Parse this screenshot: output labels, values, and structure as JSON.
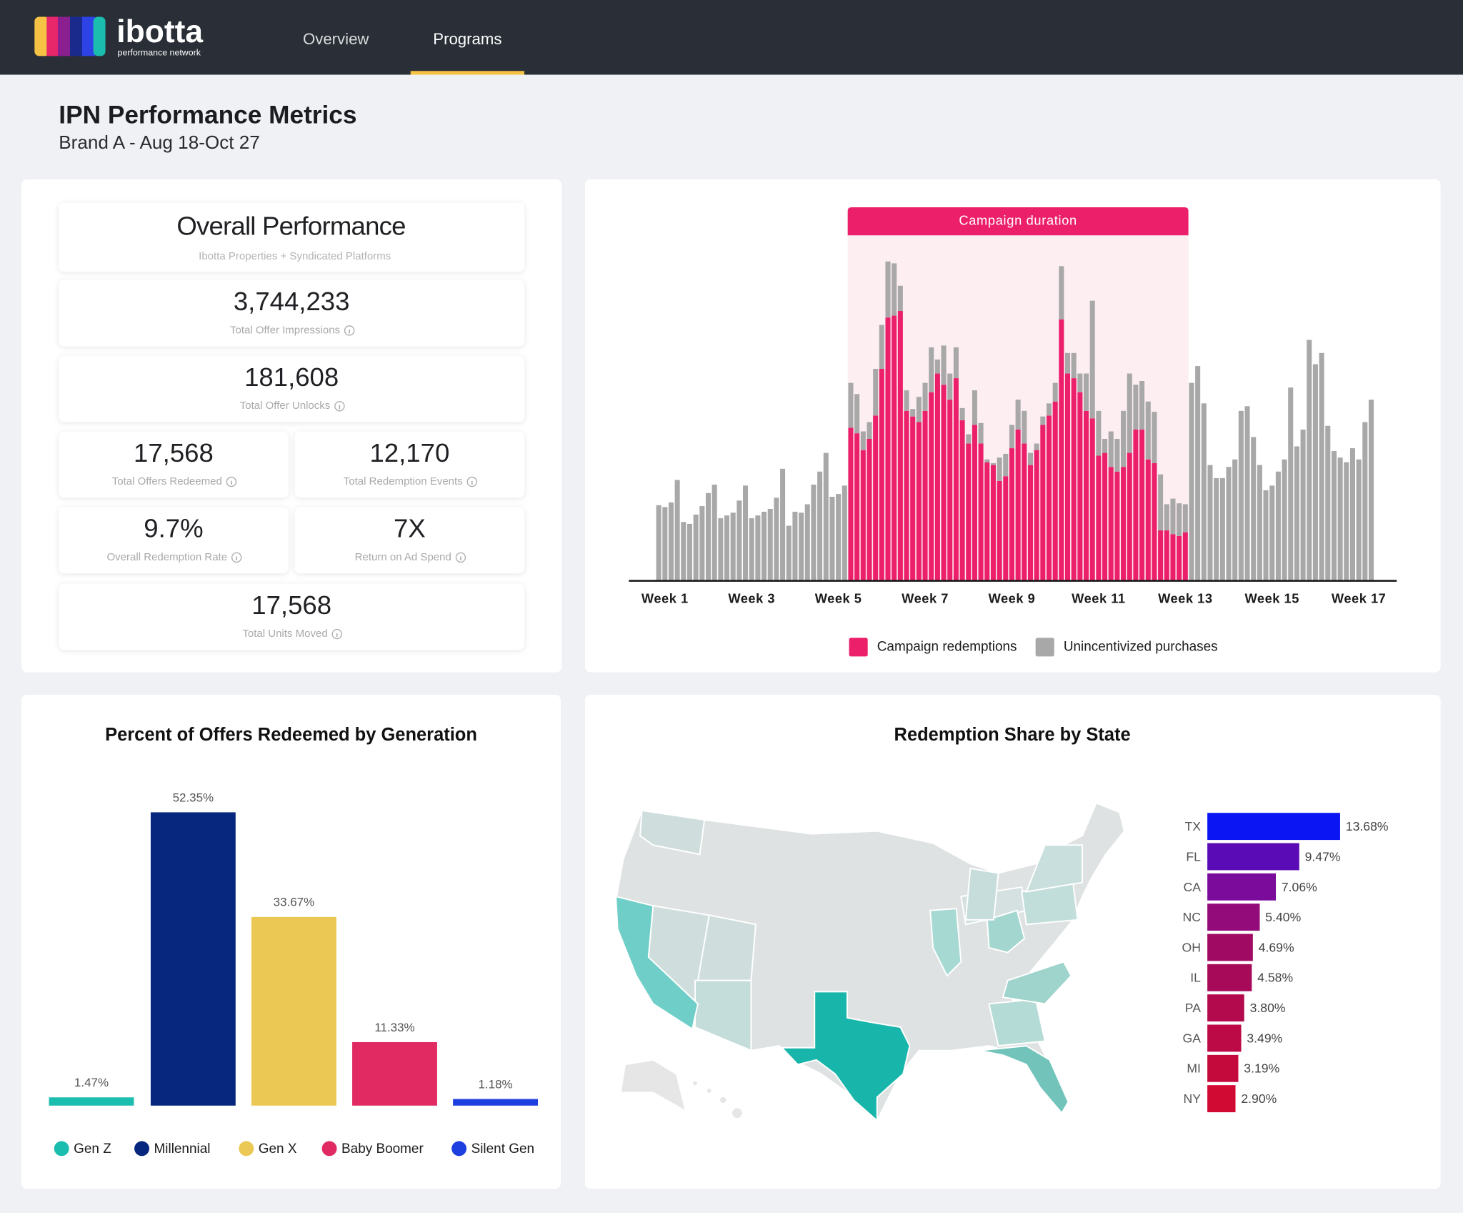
{
  "header": {
    "logo": "ibotta",
    "logo_sub": "performance network",
    "nav": [
      "Overview",
      "Programs"
    ],
    "active": 1
  },
  "page": {
    "title": "IPN Performance Metrics",
    "subtitle": "Brand A - Aug 18-Oct 27"
  },
  "metrics": {
    "title": "Overall Performance",
    "subtitle": "Ibotta Properties + Syndicated Platforms",
    "items": [
      {
        "value": "3,744,233",
        "label": "Total Offer Impressions"
      },
      {
        "value": "181,608",
        "label": "Total Offer Unlocks"
      },
      {
        "value": "17,568",
        "label": "Total Offers Redeemed"
      },
      {
        "value": "12,170",
        "label": "Total Redemption Events"
      },
      {
        "value": "9.7%",
        "label": "Overall Redemption Rate"
      },
      {
        "value": "7X",
        "label": "Return on Ad Spend"
      },
      {
        "value": "17,568",
        "label": "Total Units Moved"
      }
    ]
  },
  "chart_data": [
    {
      "type": "bar",
      "stacked": true,
      "annotation": "Campaign duration",
      "categories": [
        null,
        "Week 1",
        null,
        null,
        null,
        null,
        null,
        null,
        null,
        null,
        null,
        null,
        null,
        null,
        null,
        "Week 3",
        null,
        null,
        null,
        null,
        null,
        null,
        null,
        null,
        null,
        null,
        null,
        null,
        null,
        "Week 5",
        null,
        null,
        null,
        null,
        null,
        null,
        null,
        null,
        null,
        null,
        null,
        null,
        null,
        "Week 7",
        null,
        null,
        null,
        null,
        null,
        null,
        null,
        null,
        null,
        null,
        null,
        null,
        null,
        "Week 9",
        null,
        null,
        null,
        null,
        null,
        null,
        null,
        null,
        null,
        null,
        null,
        null,
        null,
        "Week 11",
        null,
        null,
        null,
        null,
        null,
        null,
        null,
        null,
        null,
        null,
        null,
        null,
        null,
        "Week 13",
        null,
        null,
        null,
        null,
        null,
        null,
        null,
        null,
        null,
        null,
        null,
        null,
        null,
        "Week 15",
        null,
        null,
        null,
        null,
        null,
        null,
        null,
        null,
        null,
        null,
        null,
        null,
        null,
        "Week 17",
        null,
        null
      ],
      "series": [
        {
          "name": "Campaign redemptions",
          "color": "#ec1f6a",
          "values": [
            null,
            null,
            null,
            null,
            null,
            null,
            null,
            null,
            null,
            null,
            null,
            null,
            null,
            null,
            null,
            null,
            null,
            null,
            null,
            null,
            null,
            null,
            null,
            null,
            null,
            null,
            null,
            null,
            null,
            null,
            null,
            164,
            158,
            140,
            152,
            177,
            227,
            282,
            284,
            289,
            182,
            176,
            170,
            182,
            202,
            222,
            210,
            194,
            217,
            172,
            147,
            167,
            147,
            127,
            124,
            107,
            112,
            142,
            162,
            147,
            124,
            140,
            167,
            177,
            192,
            280,
            222,
            217,
            202,
            182,
            174,
            134,
            137,
            122,
            117,
            122,
            137,
            162,
            162,
            130,
            126,
            54,
            54,
            50,
            48,
            52,
            null,
            null,
            null,
            null,
            null,
            null,
            null,
            null,
            null,
            null,
            null,
            null,
            null,
            null,
            null,
            null,
            null,
            null,
            null,
            null,
            null,
            null,
            null,
            null,
            null,
            null,
            null,
            null,
            null,
            null
          ]
        },
        {
          "name": "Unincentivized purchases",
          "color": "#a8a8a8",
          "values": [
            81,
            79,
            84,
            108,
            63,
            61,
            71,
            80,
            94,
            103,
            67,
            70,
            73,
            86,
            102,
            67,
            70,
            74,
            77,
            89,
            120,
            59,
            74,
            73,
            82,
            103,
            117,
            137,
            90,
            93,
            102,
            48,
            42,
            20,
            18,
            50,
            47,
            60,
            56,
            27,
            22,
            8,
            27,
            30,
            48,
            15,
            42,
            28,
            33,
            13,
            10,
            37,
            22,
            3,
            2,
            25,
            24,
            25,
            32,
            35,
            13,
            7,
            9,
            13,
            20,
            57,
            22,
            27,
            20,
            40,
            126,
            48,
            15,
            38,
            35,
            60,
            85,
            48,
            52,
            62,
            55,
            60,
            28,
            38,
            35,
            30,
            212,
            230,
            190,
            124,
            110,
            110,
            122,
            130,
            182,
            187,
            154,
            124,
            97,
            102,
            117,
            130,
            207,
            144,
            162,
            258,
            232,
            244,
            166,
            139,
            132,
            127,
            142,
            130,
            170,
            194
          ]
        }
      ]
    },
    {
      "type": "bar",
      "title": "Percent of Offers Redeemed by Generation",
      "categories": [
        "Gen Z",
        "Millennial",
        "Gen X",
        "Baby Boomer",
        "Silent Gen"
      ],
      "values": [
        1.47,
        52.35,
        33.67,
        11.33,
        1.18
      ],
      "value_labels": [
        "1.47%",
        "52.35%",
        "33.67%",
        "11.33%",
        "1.18%"
      ],
      "colors": [
        "#1bbdae",
        "#07277f",
        "#ebc753",
        "#e12a62",
        "#1e3fdf"
      ],
      "legend": true
    },
    {
      "type": "barh",
      "title": "Redemption Share by State",
      "categories": [
        "TX",
        "FL",
        "CA",
        "NC",
        "OH",
        "IL",
        "PA",
        "GA",
        "MI",
        "NY"
      ],
      "values": [
        13.68,
        9.47,
        7.06,
        5.4,
        4.69,
        4.58,
        3.8,
        3.49,
        3.19,
        2.9
      ],
      "value_labels": [
        "13.68%",
        "9.47%",
        "7.06%",
        "5.40%",
        "4.69%",
        "4.58%",
        "3.80%",
        "3.49%",
        "3.19%",
        "2.90%"
      ],
      "colors": [
        "#0b15f4",
        "#5a0bb5",
        "#7a0b9b",
        "#930b7b",
        "#a00a62",
        "#a70a59",
        "#b30a4d",
        "#bb0a45",
        "#c40a3d",
        "#d10a34"
      ]
    }
  ]
}
